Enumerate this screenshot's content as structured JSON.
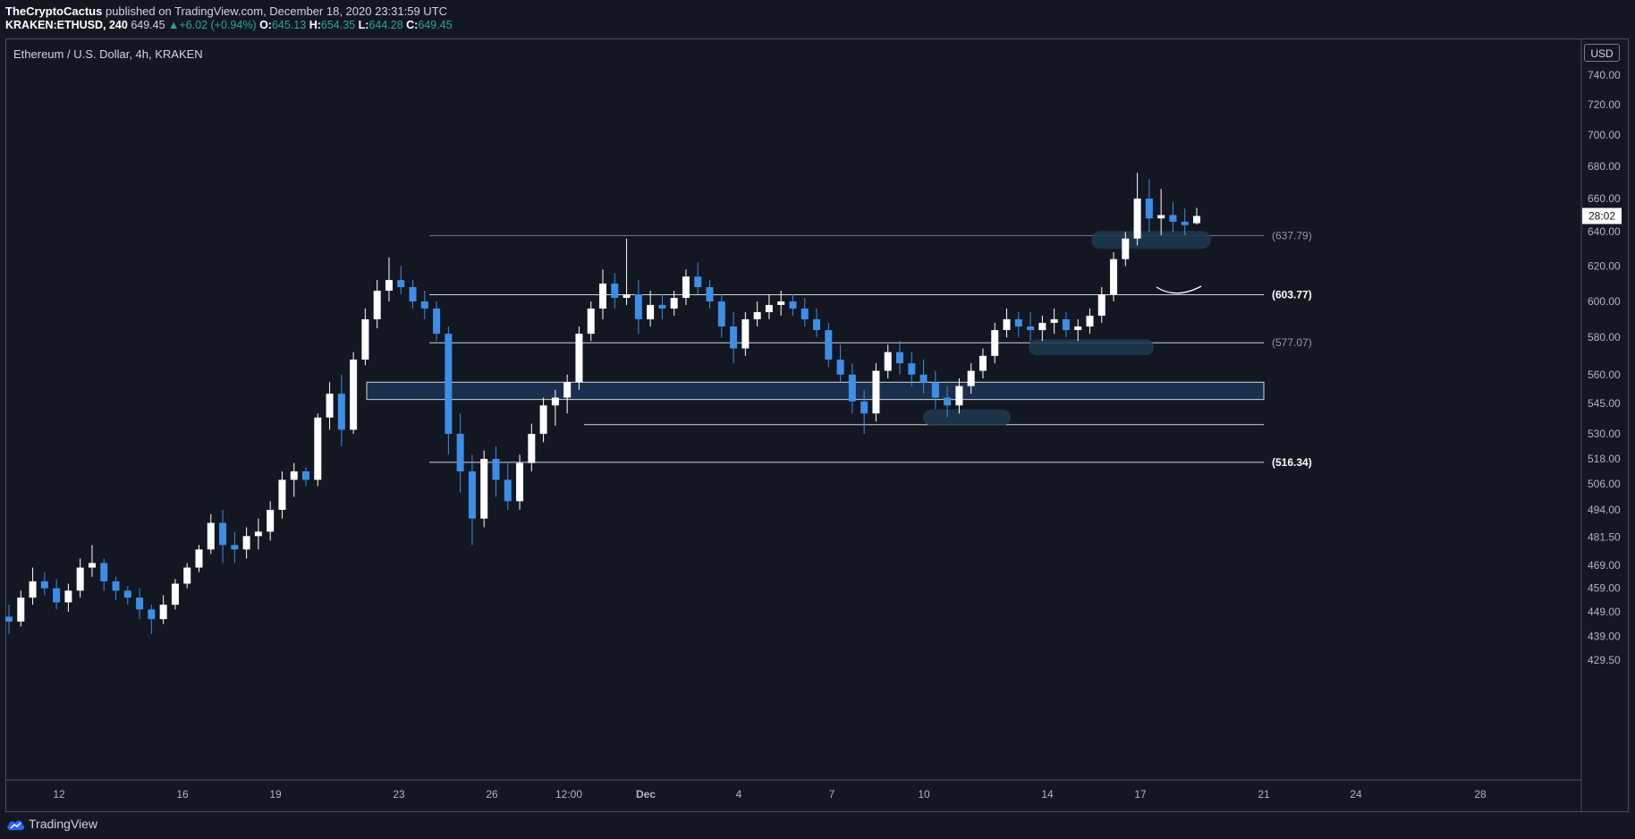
{
  "header": {
    "author": "TheCryptoCactus",
    "published_text": " published on TradingView.com, December 18, 2020 23:31:59 UTC",
    "symbol": "KRAKEN:ETHUSD, 240",
    "last": "649.45",
    "change_arrow": "▲",
    "change": "+6.02 (+0.94%)",
    "o_label": "O:",
    "o_value": "645.13",
    "h_label": "H:",
    "h_value": "654.35",
    "l_label": "L:",
    "l_value": "644.28",
    "c_label": "C:",
    "c_value": "649.45"
  },
  "chart_title": "Ethereum / U.S. Dollar, 4h, KRAKEN",
  "currency_button": "USD",
  "footer": {
    "brand": "TradingView",
    "brand_icon": "tradingview-cloud-icon"
  },
  "colors": {
    "background": "#131722",
    "bull_candle": "#ffffff",
    "bear_candle": "#3d8ee6",
    "zone_fill": "#1e3a5f",
    "grid_text": "#b2b5be"
  },
  "chart_data": {
    "type": "candlestick",
    "title": "Ethereum / U.S. Dollar, 4h, KRAKEN",
    "y_scale": "log",
    "ylim": [
      424,
      760
    ],
    "y_ticks": [
      "740.00",
      "720.00",
      "700.00",
      "680.00",
      "660.00",
      "640.00",
      "620.00",
      "600.00",
      "580.00",
      "560.00",
      "545.00",
      "530.00",
      "518.00",
      "506.00",
      "494.00",
      "481.50",
      "469.00",
      "459.00",
      "449.00",
      "439.00",
      "429.50"
    ],
    "x_ticks": [
      "12",
      "16",
      "19",
      "23",
      "26",
      "12:00",
      "Dec",
      "4",
      "7",
      "10",
      "14",
      "17",
      "21",
      "24",
      "28"
    ],
    "countdown_label": "28:02",
    "last_price": 649.45,
    "horizontal_levels": [
      {
        "label": "(637.79)",
        "value": 637.79
      },
      {
        "label": "(603.77)",
        "value": 603.77
      },
      {
        "label": "(577.07)",
        "value": 577.07
      },
      {
        "label": "",
        "value": 534.5
      },
      {
        "label": "(516.34)",
        "value": 516.34
      }
    ],
    "zones": [
      {
        "from": 547,
        "to": 556
      }
    ],
    "candles_4h_ohlc_summary": [
      [
        447,
        452,
        440,
        445
      ],
      [
        445,
        458,
        443,
        455
      ],
      [
        455,
        468,
        452,
        462
      ],
      [
        462,
        466,
        456,
        459
      ],
      [
        459,
        463,
        450,
        453
      ],
      [
        453,
        461,
        449,
        458
      ],
      [
        458,
        472,
        455,
        468
      ],
      [
        468,
        478,
        464,
        470
      ],
      [
        470,
        472,
        458,
        462
      ],
      [
        462,
        464,
        454,
        458
      ],
      [
        458,
        460,
        452,
        455
      ],
      [
        455,
        459,
        446,
        450
      ],
      [
        450,
        452,
        440,
        446
      ],
      [
        446,
        456,
        444,
        452
      ],
      [
        452,
        463,
        450,
        461
      ],
      [
        461,
        470,
        459,
        468
      ],
      [
        468,
        478,
        466,
        476
      ],
      [
        476,
        492,
        474,
        488
      ],
      [
        488,
        494,
        470,
        478
      ],
      [
        478,
        484,
        470,
        476
      ],
      [
        476,
        486,
        472,
        482
      ],
      [
        482,
        490,
        476,
        484
      ],
      [
        484,
        498,
        480,
        494
      ],
      [
        494,
        512,
        490,
        508
      ],
      [
        508,
        516,
        500,
        512
      ],
      [
        512,
        514,
        505,
        508
      ],
      [
        508,
        540,
        505,
        538
      ],
      [
        538,
        556,
        532,
        550
      ],
      [
        550,
        560,
        524,
        532
      ],
      [
        532,
        572,
        530,
        568
      ],
      [
        568,
        596,
        565,
        590
      ],
      [
        590,
        612,
        585,
        606
      ],
      [
        606,
        625,
        600,
        612
      ],
      [
        612,
        620,
        604,
        608
      ],
      [
        608,
        612,
        596,
        600
      ],
      [
        600,
        606,
        590,
        596
      ],
      [
        596,
        600,
        578,
        582
      ],
      [
        582,
        586,
        520,
        530
      ],
      [
        530,
        540,
        502,
        512
      ],
      [
        512,
        520,
        478,
        490
      ],
      [
        490,
        522,
        486,
        518
      ],
      [
        518,
        524,
        500,
        508
      ],
      [
        508,
        516,
        494,
        498
      ],
      [
        498,
        520,
        494,
        516
      ],
      [
        516,
        535,
        512,
        530
      ],
      [
        530,
        548,
        526,
        544
      ],
      [
        544,
        552,
        534,
        548
      ],
      [
        548,
        560,
        540,
        556
      ],
      [
        556,
        586,
        552,
        582
      ],
      [
        582,
        600,
        578,
        596
      ],
      [
        596,
        618,
        590,
        610
      ],
      [
        610,
        616,
        596,
        602
      ],
      [
        602,
        636,
        598,
        604
      ],
      [
        604,
        612,
        582,
        590
      ],
      [
        590,
        606,
        586,
        598
      ],
      [
        598,
        604,
        590,
        596
      ],
      [
        596,
        606,
        592,
        602
      ],
      [
        602,
        618,
        598,
        614
      ],
      [
        614,
        622,
        604,
        608
      ],
      [
        608,
        612,
        596,
        600
      ],
      [
        600,
        604,
        580,
        586
      ],
      [
        586,
        594,
        566,
        574
      ],
      [
        574,
        594,
        570,
        590
      ],
      [
        590,
        600,
        586,
        594
      ],
      [
        594,
        604,
        590,
        598
      ],
      [
        598,
        606,
        592,
        600
      ],
      [
        600,
        604,
        592,
        596
      ],
      [
        596,
        602,
        586,
        590
      ],
      [
        590,
        596,
        580,
        584
      ],
      [
        584,
        588,
        564,
        568
      ],
      [
        568,
        576,
        556,
        560
      ],
      [
        560,
        566,
        540,
        546
      ],
      [
        546,
        552,
        530,
        540
      ],
      [
        540,
        566,
        536,
        562
      ],
      [
        562,
        576,
        558,
        572
      ],
      [
        572,
        578,
        560,
        566
      ],
      [
        566,
        572,
        554,
        560
      ],
      [
        560,
        568,
        550,
        556
      ],
      [
        556,
        562,
        542,
        548
      ],
      [
        548,
        554,
        538,
        544
      ],
      [
        544,
        558,
        540,
        554
      ],
      [
        554,
        566,
        550,
        562
      ],
      [
        562,
        574,
        558,
        570
      ],
      [
        570,
        588,
        566,
        584
      ],
      [
        584,
        596,
        580,
        590
      ],
      [
        590,
        594,
        580,
        586
      ],
      [
        586,
        594,
        578,
        584
      ],
      [
        584,
        592,
        578,
        588
      ],
      [
        588,
        596,
        582,
        590
      ],
      [
        590,
        594,
        580,
        584
      ],
      [
        584,
        590,
        578,
        586
      ],
      [
        586,
        596,
        582,
        592
      ],
      [
        592,
        608,
        588,
        604
      ],
      [
        604,
        628,
        600,
        624
      ],
      [
        624,
        640,
        620,
        636
      ],
      [
        636,
        676,
        632,
        660
      ],
      [
        660,
        672,
        640,
        648
      ],
      [
        648,
        666,
        638,
        650
      ],
      [
        650,
        658,
        640,
        646
      ],
      [
        646,
        654,
        638,
        644
      ],
      [
        645.13,
        654.35,
        644.28,
        649.45
      ]
    ]
  }
}
